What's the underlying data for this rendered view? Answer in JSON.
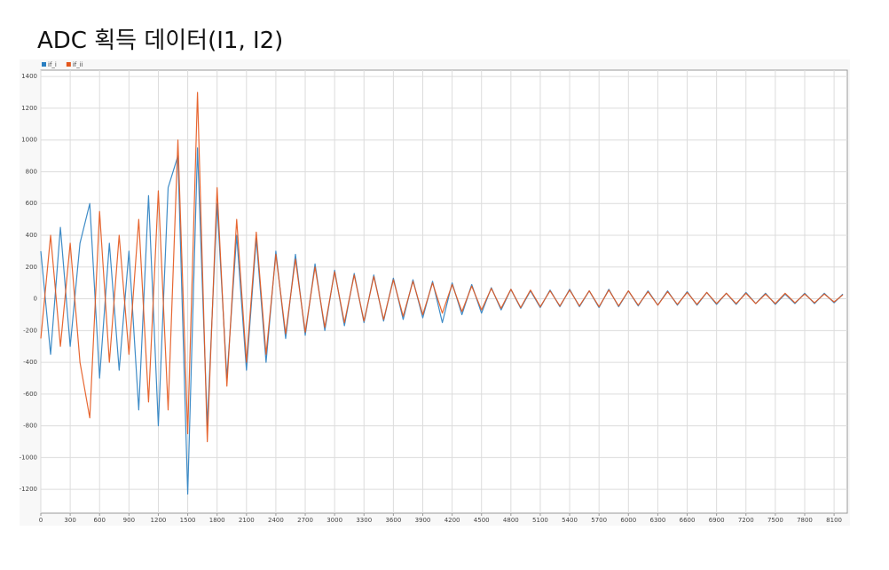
{
  "chart_data": {
    "type": "line",
    "title": "ADC 획득 데이터(I1, I2)",
    "x": [
      0,
      100,
      200,
      300,
      400,
      500,
      600,
      700,
      800,
      900,
      1000,
      1100,
      1200,
      1300,
      1400,
      1500,
      1600,
      1700,
      1800,
      1900,
      2000,
      2100,
      2200,
      2300,
      2400,
      2500,
      2600,
      2700,
      2800,
      2900,
      3000,
      3100,
      3200,
      3300,
      3400,
      3500,
      3600,
      3700,
      3800,
      3900,
      4000,
      4100,
      4200,
      4300,
      4400,
      4500,
      4600,
      4700,
      4800,
      4900,
      5000,
      5100,
      5200,
      5300,
      5400,
      5500,
      5600,
      5700,
      5800,
      5900,
      6000,
      6100,
      6200,
      6300,
      6400,
      6500,
      6600,
      6700,
      6800,
      6900,
      7000,
      7100,
      7200,
      7300,
      7400,
      7500,
      7600,
      7700,
      7800,
      7900,
      8000,
      8100,
      8190
    ],
    "series": [
      {
        "name": "if_i",
        "color": "#2a7fc1",
        "values": [
          300,
          -350,
          450,
          -300,
          350,
          600,
          -500,
          350,
          -450,
          300,
          -700,
          650,
          -800,
          700,
          900,
          -1230,
          950,
          -800,
          600,
          -500,
          400,
          -450,
          380,
          -400,
          300,
          -250,
          280,
          -230,
          220,
          -200,
          180,
          -170,
          160,
          -150,
          150,
          -140,
          130,
          -130,
          120,
          -120,
          110,
          -150,
          100,
          -100,
          90,
          -90,
          70,
          -70,
          60,
          -60,
          50,
          -55,
          55,
          -50,
          60,
          -50,
          50,
          -55,
          60,
          -50,
          50,
          -45,
          50,
          -40,
          50,
          -40,
          45,
          -40,
          40,
          -35,
          35,
          -35,
          40,
          -30,
          35,
          -35,
          30,
          -30,
          35,
          -30,
          35,
          -25,
          30
        ]
      },
      {
        "name": "if_ii",
        "color": "#e4561c",
        "values": [
          -250,
          400,
          -300,
          350,
          -400,
          -750,
          550,
          -400,
          400,
          -350,
          500,
          -650,
          680,
          -700,
          1000,
          -850,
          1300,
          -900,
          700,
          -550,
          500,
          -400,
          420,
          -350,
          280,
          -220,
          250,
          -210,
          200,
          -180,
          170,
          -150,
          150,
          -140,
          140,
          -130,
          120,
          -110,
          110,
          -100,
          100,
          -90,
          90,
          -80,
          80,
          -70,
          65,
          -60,
          60,
          -55,
          55,
          -50,
          50,
          -45,
          55,
          -45,
          50,
          -50,
          55,
          -45,
          50,
          -40,
          45,
          -40,
          45,
          -35,
          40,
          -35,
          40,
          -30,
          35,
          -30,
          35,
          -30,
          30,
          -30,
          35,
          -25,
          30,
          -25,
          30,
          -20,
          25
        ]
      }
    ],
    "xlim": [
      0,
      8235
    ],
    "ylim": [
      -1350,
      1440
    ],
    "xticks": [
      0,
      300,
      600,
      900,
      1200,
      1500,
      1800,
      2100,
      2400,
      2700,
      3000,
      3300,
      3600,
      3900,
      4200,
      4500,
      4800,
      5100,
      5400,
      5700,
      6000,
      6300,
      6600,
      6900,
      7200,
      7500,
      7800,
      8100
    ],
    "yticks": [
      -1200,
      -1000,
      -800,
      -600,
      -400,
      -200,
      0,
      200,
      400,
      600,
      800,
      1000,
      1200,
      1400
    ],
    "grid": true,
    "legend": "upper left"
  }
}
